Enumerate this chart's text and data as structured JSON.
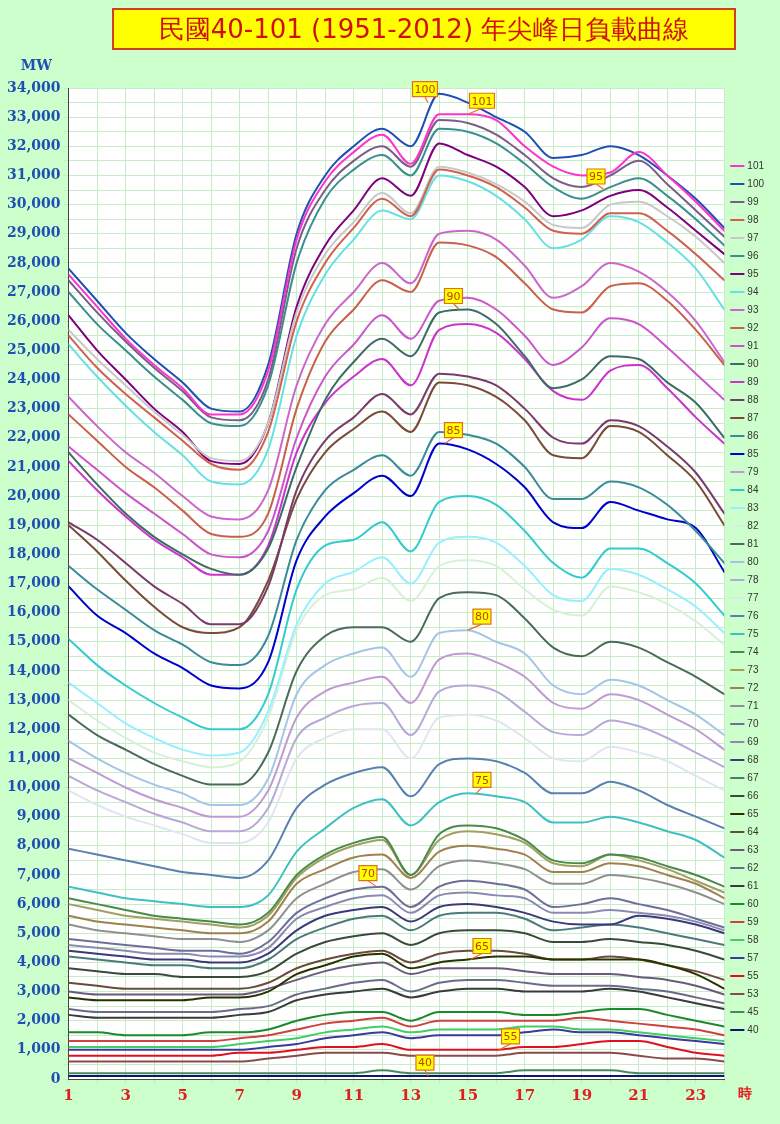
{
  "chart_data": {
    "type": "line",
    "title": "民國40-101 (1951-2012) 年尖峰日負載曲線",
    "ylabel": "MW",
    "xlabel": "時",
    "x": [
      1,
      2,
      3,
      4,
      5,
      6,
      7,
      8,
      9,
      10,
      11,
      12,
      13,
      14,
      15,
      16,
      17,
      18,
      19,
      20,
      21,
      22,
      23,
      24
    ],
    "xlim": [
      1,
      24
    ],
    "xticks": [
      1,
      {
        "value": 2,
        "label": null
      },
      3,
      {
        "value": 4,
        "label": null
      },
      5,
      {
        "value": 6,
        "label": null
      },
      7,
      {
        "value": 8,
        "label": null
      },
      9,
      {
        "value": 10,
        "label": null
      },
      11,
      {
        "value": 12,
        "label": null
      },
      13,
      {
        "value": 14,
        "label": null
      },
      15,
      {
        "value": 16,
        "label": null
      },
      17,
      {
        "value": 18,
        "label": null
      },
      19,
      {
        "value": 20,
        "label": null
      },
      21,
      {
        "value": 22,
        "label": null
      },
      23,
      {
        "value": 24,
        "label": null
      }
    ],
    "ylim": [
      0,
      34000
    ],
    "yticks": [
      0,
      {
        "value": 500,
        "label": null
      },
      {
        "value": 1000,
        "label": "1,000"
      },
      {
        "value": 1500,
        "label": null
      },
      {
        "value": 2000,
        "label": "2,000"
      },
      {
        "value": 2500,
        "label": null
      },
      {
        "value": 3000,
        "label": "3,000"
      },
      {
        "value": 3500,
        "label": null
      },
      {
        "value": 4000,
        "label": "4,000"
      },
      {
        "value": 4500,
        "label": null
      },
      {
        "value": 5000,
        "label": "5,000"
      },
      {
        "value": 5500,
        "label": null
      },
      {
        "value": 6000,
        "label": "6,000"
      },
      {
        "value": 6500,
        "label": null
      },
      {
        "value": 7000,
        "label": "7,000"
      },
      {
        "value": 7500,
        "label": null
      },
      {
        "value": 8000,
        "label": "8,000"
      },
      {
        "value": 8500,
        "label": null
      },
      {
        "value": 9000,
        "label": "9,000"
      },
      {
        "value": 9500,
        "label": null
      },
      {
        "value": 10000,
        "label": "10,000"
      },
      {
        "value": 10500,
        "label": null
      },
      {
        "value": 11000,
        "label": "11,000"
      },
      {
        "value": 11500,
        "label": null
      },
      {
        "value": 12000,
        "label": "12,000"
      },
      {
        "value": 12500,
        "label": null
      },
      {
        "value": 13000,
        "label": "13,000"
      },
      {
        "value": 13500,
        "label": null
      },
      {
        "value": 14000,
        "label": "14,000"
      },
      {
        "value": 14500,
        "label": null
      },
      {
        "value": 15000,
        "label": "15,000"
      },
      {
        "value": 15500,
        "label": null
      },
      {
        "value": 16000,
        "label": "16,000"
      },
      {
        "value": 16500,
        "label": null
      },
      {
        "value": 17000,
        "label": "17,000"
      },
      {
        "value": 17500,
        "label": null
      },
      {
        "value": 18000,
        "label": "18,000"
      },
      {
        "value": 18500,
        "label": null
      },
      {
        "value": 19000,
        "label": "19,000"
      },
      {
        "value": 19500,
        "label": null
      },
      {
        "value": 20000,
        "label": "20,000"
      },
      {
        "value": 20500,
        "label": null
      },
      {
        "value": 21000,
        "label": "21,000"
      },
      {
        "value": 21500,
        "label": null
      },
      {
        "value": 22000,
        "label": "22,000"
      },
      {
        "value": 22500,
        "label": null
      },
      {
        "value": 23000,
        "label": "23,000"
      },
      {
        "value": 23500,
        "label": null
      },
      {
        "value": 24000,
        "label": "24,000"
      },
      {
        "value": 24500,
        "label": null
      },
      {
        "value": 25000,
        "label": "25,000"
      },
      {
        "value": 25500,
        "label": null
      },
      {
        "value": 26000,
        "label": "26,000"
      },
      {
        "value": 26500,
        "label": null
      },
      {
        "value": 27000,
        "label": "27,000"
      },
      {
        "value": 27500,
        "label": null
      },
      {
        "value": 28000,
        "label": "28,000"
      },
      {
        "value": 28500,
        "label": null
      },
      {
        "value": 29000,
        "label": "29,000"
      },
      {
        "value": 29500,
        "label": null
      },
      {
        "value": 30000,
        "label": "30,000"
      },
      {
        "value": 30500,
        "label": null
      },
      {
        "value": 31000,
        "label": "31,000"
      },
      {
        "value": 31500,
        "label": null
      },
      {
        "value": 32000,
        "label": "32,000"
      },
      {
        "value": 32500,
        "label": null
      },
      {
        "value": 33000,
        "label": "33,000"
      },
      {
        "value": 33500,
        "label": null
      },
      {
        "value": 34000,
        "label": "34,000"
      }
    ],
    "grid": true,
    "legend": "right",
    "marker": "none",
    "line_style": "solid",
    "annotations": [
      {
        "text": "100",
        "x": 13.6,
        "y": 33500
      },
      {
        "text": "101",
        "x": 15,
        "y": 33100
      },
      {
        "text": "95",
        "x": 19.8,
        "y": 30500
      },
      {
        "text": "90",
        "x": 14.7,
        "y": 26400
      },
      {
        "text": "85",
        "x": 14.2,
        "y": 21800
      },
      {
        "text": "80",
        "x": 15,
        "y": 15400
      },
      {
        "text": "75",
        "x": 15.3,
        "y": 9800
      },
      {
        "text": "70",
        "x": 11.8,
        "y": 6600
      },
      {
        "text": "65",
        "x": 15.1,
        "y": 4100
      },
      {
        "text": "40",
        "x": 13.6,
        "y": 100
      },
      {
        "text": "55",
        "x": 16.1,
        "y": 1000
      }
    ],
    "series": [
      {
        "name": "101",
        "color": "#ff33cc",
        "values": [
          27600,
          26500,
          25400,
          24500,
          23700,
          22800,
          22800,
          24300,
          28800,
          30800,
          31800,
          32400,
          31400,
          33100,
          33100,
          32900,
          32000,
          31300,
          31000,
          31100,
          31800,
          31000,
          30100,
          29100
        ]
      },
      {
        "name": "100",
        "color": "#1f4fb4",
        "values": [
          27800,
          26700,
          25600,
          24700,
          23900,
          23000,
          22900,
          24500,
          29000,
          31000,
          32000,
          32600,
          32000,
          33800,
          33500,
          33000,
          32500,
          31600,
          31700,
          32000,
          31700,
          31000,
          30200,
          29200
        ]
      },
      {
        "name": "99",
        "color": "#7a5c8a",
        "values": [
          27400,
          26300,
          25300,
          24400,
          23600,
          22700,
          22600,
          24000,
          28500,
          30500,
          31500,
          32000,
          31300,
          32900,
          32800,
          32400,
          31700,
          30900,
          30600,
          31000,
          31500,
          30700,
          29800,
          28900
        ]
      },
      {
        "name": "98",
        "color": "#d06050",
        "values": [
          25500,
          24400,
          23500,
          22700,
          21900,
          21100,
          20900,
          22200,
          26000,
          28000,
          29200,
          30200,
          29600,
          31200,
          31000,
          30600,
          29900,
          29100,
          29000,
          29700,
          29700,
          29100,
          28300,
          27400
        ]
      },
      {
        "name": "97",
        "color": "#c8c8c8",
        "values": [
          25700,
          24700,
          23800,
          22900,
          22100,
          21300,
          21200,
          22500,
          26300,
          28300,
          29400,
          30400,
          29700,
          31300,
          31100,
          30700,
          30100,
          29300,
          29200,
          30000,
          30100,
          29600,
          28900,
          28000
        ]
      },
      {
        "name": "96",
        "color": "#3a8f8f",
        "values": [
          27000,
          25900,
          25000,
          24100,
          23300,
          22500,
          22400,
          23800,
          28000,
          30200,
          31200,
          31700,
          31000,
          32600,
          32500,
          32100,
          31400,
          30600,
          30200,
          30600,
          30900,
          30300,
          29500,
          28600
        ]
      },
      {
        "name": "95",
        "color": "#7f007f",
        "values": [
          26200,
          25000,
          24000,
          23000,
          22200,
          21200,
          21100,
          22500,
          26500,
          28600,
          29800,
          30900,
          30300,
          32100,
          31700,
          31300,
          30600,
          29600,
          29800,
          30300,
          30500,
          29900,
          29100,
          28300
        ]
      },
      {
        "name": "94",
        "color": "#66e0e0",
        "values": [
          25200,
          24100,
          23100,
          22200,
          21400,
          20500,
          20400,
          21600,
          25500,
          27600,
          28800,
          29800,
          29500,
          31000,
          30800,
          30300,
          29500,
          28500,
          28800,
          29600,
          29400,
          28700,
          27800,
          26400
        ]
      },
      {
        "name": "93",
        "color": "#cc66cc",
        "values": [
          23400,
          22400,
          21500,
          20800,
          20000,
          19300,
          19200,
          20200,
          23800,
          25900,
          27000,
          28000,
          27300,
          29000,
          29100,
          28800,
          27900,
          26800,
          27200,
          28000,
          27700,
          27000,
          26000,
          24600
        ]
      },
      {
        "name": "92",
        "color": "#c8604a",
        "values": [
          22800,
          21900,
          21000,
          20300,
          19500,
          18700,
          18600,
          19400,
          23000,
          25300,
          26400,
          27400,
          27000,
          28700,
          28600,
          28200,
          27300,
          26400,
          26300,
          27200,
          27300,
          26700,
          25700,
          24500
        ]
      },
      {
        "name": "91",
        "color": "#cc55cc",
        "values": [
          21700,
          20900,
          20100,
          19400,
          18700,
          18000,
          17900,
          18800,
          22000,
          24100,
          25200,
          26200,
          25400,
          26700,
          26800,
          26400,
          25500,
          24500,
          25100,
          26100,
          25900,
          25100,
          24200,
          23300
        ]
      },
      {
        "name": "90",
        "color": "#3d6b65",
        "values": [
          21500,
          20400,
          19400,
          18600,
          18000,
          17500,
          17300,
          18200,
          21000,
          23300,
          24600,
          25400,
          24800,
          26300,
          26400,
          25900,
          24800,
          23700,
          24000,
          24800,
          24700,
          23900,
          23200,
          22000
        ]
      },
      {
        "name": "89",
        "color": "#cc33cc",
        "values": [
          21200,
          20200,
          19300,
          18500,
          17900,
          17300,
          17300,
          18300,
          21500,
          23200,
          24100,
          24700,
          23800,
          25700,
          25900,
          25600,
          24700,
          23600,
          23300,
          24300,
          24500,
          23700,
          22700,
          21800
        ]
      },
      {
        "name": "88",
        "color": "#7a3a6a",
        "values": [
          19100,
          18500,
          17700,
          16900,
          16300,
          15600,
          15600,
          16900,
          20200,
          21900,
          22700,
          23500,
          22800,
          24200,
          24100,
          23800,
          23000,
          22000,
          21800,
          22600,
          22400,
          21700,
          20800,
          19400
        ]
      },
      {
        "name": "87",
        "color": "#7a4a3a",
        "values": [
          19000,
          18100,
          17100,
          16200,
          15500,
          15300,
          15500,
          17100,
          19900,
          21500,
          22300,
          22900,
          22200,
          23900,
          23800,
          23400,
          22600,
          21400,
          21300,
          22400,
          22200,
          21400,
          20500,
          19000
        ]
      },
      {
        "name": "86",
        "color": "#3a8a9a",
        "values": [
          17600,
          16800,
          16100,
          15400,
          14900,
          14300,
          14200,
          15200,
          18500,
          20200,
          20900,
          21400,
          20700,
          22200,
          22100,
          21800,
          21000,
          19900,
          19900,
          20500,
          20300,
          19700,
          18800,
          17700
        ]
      },
      {
        "name": "85",
        "color": "#0000cc",
        "values": [
          16900,
          15900,
          15300,
          14600,
          14100,
          13500,
          13400,
          14300,
          17800,
          19300,
          20100,
          20700,
          20000,
          21800,
          21600,
          21100,
          20300,
          19100,
          18900,
          19800,
          19500,
          19200,
          18900,
          17400
        ]
      },
      {
        "name": "79",
        "color": "#c09ad0",
        "values": [
          11000,
          10500,
          10000,
          9600,
          9300,
          9000,
          9000,
          9900,
          12400,
          13300,
          13600,
          13800,
          12900,
          14400,
          14600,
          14300,
          13800,
          12900,
          12700,
          13200,
          13000,
          12500,
          12000,
          11300
        ]
      },
      {
        "name": "84",
        "color": "#33cccc",
        "values": [
          15100,
          14200,
          13500,
          12900,
          12400,
          12000,
          12000,
          13200,
          16800,
          18300,
          18500,
          19100,
          18100,
          19800,
          20000,
          19700,
          18800,
          17700,
          17200,
          18200,
          18200,
          17700,
          17000,
          15900
        ]
      },
      {
        "name": "83",
        "color": "#99eeff",
        "values": [
          13600,
          12900,
          12200,
          11700,
          11300,
          11100,
          11200,
          12600,
          15600,
          17000,
          17400,
          17900,
          17000,
          18400,
          18600,
          18400,
          17600,
          16600,
          16400,
          17500,
          17300,
          16800,
          16200,
          15300
        ]
      },
      {
        "name": "82",
        "color": "#d8efd8",
        "values": [
          13000,
          12300,
          11700,
          11200,
          10900,
          10700,
          10900,
          12400,
          15400,
          16600,
          16800,
          17200,
          16400,
          17600,
          17800,
          17600,
          16800,
          16100,
          15900,
          16900,
          16700,
          16300,
          15700,
          14900
        ]
      },
      {
        "name": "81",
        "color": "#4a6a5a",
        "values": [
          12500,
          11800,
          11300,
          10800,
          10400,
          10100,
          10100,
          11200,
          14000,
          15200,
          15500,
          15500,
          15000,
          16500,
          16700,
          16600,
          15800,
          14800,
          14500,
          15000,
          14800,
          14300,
          13800,
          13200
        ]
      },
      {
        "name": "80",
        "color": "#a6c4e6",
        "values": [
          11600,
          11000,
          10500,
          10100,
          9800,
          9400,
          9400,
          10300,
          13200,
          14200,
          14600,
          14800,
          13800,
          15300,
          15400,
          15000,
          14600,
          13500,
          13200,
          13700,
          13500,
          13000,
          12500,
          11800
        ]
      },
      {
        "name": "78",
        "color": "#b8a8d8",
        "values": [
          10400,
          9900,
          9500,
          9100,
          8800,
          8500,
          8500,
          9300,
          11700,
          12400,
          12800,
          12900,
          11800,
          13300,
          13500,
          13300,
          12600,
          11900,
          11800,
          12300,
          12100,
          11700,
          11200,
          10700
        ]
      },
      {
        "name": "77",
        "color": "#e0e6f0",
        "values": [
          9900,
          9400,
          9000,
          8700,
          8400,
          8100,
          8100,
          8800,
          11000,
          11700,
          12000,
          12000,
          11000,
          12400,
          12500,
          12300,
          11700,
          11000,
          10900,
          11400,
          11200,
          10900,
          10400,
          9900
        ]
      },
      {
        "name": "76",
        "color": "#5a80b0",
        "values": [
          7900,
          7700,
          7500,
          7300,
          7100,
          7000,
          6900,
          7500,
          9300,
          10100,
          10500,
          10700,
          9700,
          10800,
          11000,
          10900,
          10500,
          9800,
          9800,
          10200,
          9900,
          9400,
          9000,
          8600
        ]
      },
      {
        "name": "75",
        "color": "#40c0c0",
        "values": [
          6600,
          6400,
          6200,
          6100,
          6000,
          5900,
          5900,
          6300,
          7800,
          8600,
          9300,
          9600,
          8700,
          9500,
          9800,
          9700,
          9500,
          8800,
          8800,
          9000,
          8800,
          8500,
          8200,
          7600
        ]
      },
      {
        "name": "74",
        "color": "#4a8a4a",
        "values": [
          6200,
          6000,
          5800,
          5600,
          5500,
          5400,
          5300,
          5700,
          7000,
          7700,
          8100,
          8300,
          7000,
          8400,
          8700,
          8600,
          8200,
          7500,
          7400,
          7700,
          7600,
          7300,
          7000,
          6600
        ]
      },
      {
        "name": "73",
        "color": "#a0a060",
        "values": [
          6000,
          5800,
          5600,
          5500,
          5400,
          5300,
          5200,
          5600,
          6900,
          7600,
          8000,
          8200,
          7000,
          8200,
          8500,
          8400,
          8100,
          7400,
          7300,
          7700,
          7500,
          7200,
          6800,
          6400
        ]
      },
      {
        "name": "72",
        "color": "#a08050",
        "values": [
          5600,
          5400,
          5300,
          5200,
          5100,
          5000,
          5000,
          5400,
          6700,
          7200,
          7600,
          7700,
          6900,
          7800,
          8000,
          7900,
          7700,
          7100,
          7100,
          7400,
          7300,
          7000,
          6700,
          6200
        ]
      },
      {
        "name": "71",
        "color": "#909090",
        "values": [
          5300,
          5100,
          5000,
          4900,
          4800,
          4800,
          4700,
          5100,
          6200,
          6700,
          7100,
          7200,
          6500,
          7300,
          7500,
          7400,
          7200,
          6700,
          6700,
          7000,
          6900,
          6700,
          6400,
          6000
        ]
      },
      {
        "name": "70",
        "color": "#6e6e9a",
        "values": [
          4800,
          4700,
          4600,
          4500,
          4400,
          4400,
          4300,
          4700,
          5700,
          6200,
          6500,
          6600,
          5900,
          6600,
          6800,
          6700,
          6500,
          5900,
          6000,
          6200,
          6000,
          5800,
          5500,
          5200
        ]
      },
      {
        "name": "69",
        "color": "#8a8ab0",
        "values": [
          4600,
          4500,
          4400,
          4300,
          4300,
          4200,
          4200,
          4500,
          5500,
          5900,
          6200,
          6300,
          5700,
          6300,
          6400,
          6300,
          6200,
          5700,
          5700,
          5800,
          5700,
          5600,
          5400,
          5100
        ]
      },
      {
        "name": "68",
        "color": "#3a3a7a",
        "values": [
          4400,
          4300,
          4200,
          4100,
          4100,
          4000,
          4000,
          4300,
          5100,
          5600,
          5800,
          5900,
          5400,
          5900,
          6000,
          5900,
          5700,
          5400,
          5300,
          5300,
          5600,
          5500,
          5300,
          5000
        ]
      },
      {
        "name": "67",
        "color": "#4a7a7a",
        "values": [
          4200,
          4100,
          4000,
          3900,
          3900,
          3800,
          3800,
          4100,
          4800,
          5200,
          5500,
          5600,
          5100,
          5600,
          5700,
          5700,
          5500,
          5100,
          5200,
          5300,
          5200,
          5000,
          4800,
          4600
        ]
      },
      {
        "name": "66",
        "color": "#3a4a3a",
        "values": [
          3800,
          3700,
          3600,
          3600,
          3500,
          3500,
          3500,
          3700,
          4300,
          4700,
          4900,
          5000,
          4600,
          5000,
          5100,
          5100,
          5000,
          4700,
          4700,
          4800,
          4700,
          4600,
          4400,
          4100
        ]
      },
      {
        "name": "65",
        "color": "#2a3300",
        "values": [
          2800,
          2700,
          2700,
          2700,
          2700,
          2800,
          2800,
          3000,
          3600,
          3900,
          4200,
          4300,
          3800,
          4000,
          4100,
          4200,
          4200,
          4100,
          4100,
          4100,
          4100,
          3900,
          3600,
          3100
        ]
      },
      {
        "name": "64",
        "color": "#6a4a3a",
        "values": [
          3300,
          3200,
          3100,
          3100,
          3100,
          3100,
          3100,
          3300,
          3800,
          4100,
          4300,
          4400,
          4000,
          4300,
          4400,
          4400,
          4300,
          4100,
          4100,
          4200,
          4100,
          3900,
          3700,
          3400
        ]
      },
      {
        "name": "63",
        "color": "#6a5a7a",
        "values": [
          3000,
          2900,
          2900,
          2900,
          2900,
          2900,
          2900,
          3100,
          3400,
          3700,
          3900,
          4000,
          3600,
          3800,
          3800,
          3800,
          3700,
          3600,
          3600,
          3600,
          3500,
          3400,
          3200,
          2900
        ]
      },
      {
        "name": "62",
        "color": "#6a6a8a",
        "values": [
          2400,
          2300,
          2300,
          2300,
          2300,
          2300,
          2400,
          2500,
          2900,
          3100,
          3300,
          3400,
          3000,
          3300,
          3400,
          3400,
          3300,
          3200,
          3200,
          3200,
          3100,
          3000,
          2800,
          2600
        ]
      },
      {
        "name": "61",
        "color": "#3a3a3a",
        "values": [
          2200,
          2100,
          2100,
          2100,
          2100,
          2100,
          2200,
          2300,
          2700,
          2900,
          3000,
          3100,
          2800,
          3000,
          3100,
          3100,
          3000,
          3000,
          3000,
          3100,
          3000,
          2800,
          2600,
          2400
        ]
      },
      {
        "name": "60",
        "color": "#1a8a2a",
        "values": [
          1600,
          1600,
          1500,
          1500,
          1500,
          1600,
          1600,
          1700,
          2000,
          2200,
          2300,
          2300,
          2000,
          2300,
          2300,
          2300,
          2200,
          2200,
          2300,
          2400,
          2400,
          2200,
          2000,
          1800
        ]
      },
      {
        "name": "59",
        "color": "#d04040",
        "values": [
          1300,
          1300,
          1300,
          1300,
          1300,
          1300,
          1400,
          1500,
          1700,
          1900,
          2000,
          2100,
          1800,
          2000,
          2000,
          2000,
          2000,
          2000,
          2100,
          2000,
          1900,
          1800,
          1700,
          1500
        ]
      },
      {
        "name": "58",
        "color": "#44cc66",
        "values": [
          1100,
          1100,
          1100,
          1100,
          1100,
          1100,
          1200,
          1300,
          1400,
          1600,
          1700,
          1800,
          1600,
          1700,
          1700,
          1700,
          1800,
          1800,
          1700,
          1700,
          1600,
          1500,
          1400,
          1300
        ]
      },
      {
        "name": "57",
        "color": "#3a3a9a",
        "values": [
          1000,
          1000,
          1000,
          1000,
          1000,
          1000,
          1000,
          1100,
          1200,
          1400,
          1500,
          1600,
          1400,
          1500,
          1500,
          1500,
          1600,
          1700,
          1600,
          1600,
          1500,
          1400,
          1300,
          1200
        ]
      },
      {
        "name": "55",
        "color": "#e01020",
        "values": [
          800,
          800,
          800,
          800,
          800,
          800,
          900,
          900,
          1000,
          1100,
          1100,
          1200,
          1000,
          1000,
          1000,
          1000,
          1100,
          1100,
          1200,
          1300,
          1300,
          1100,
          900,
          800
        ]
      },
      {
        "name": "53",
        "color": "#8a4a4a",
        "values": [
          600,
          600,
          600,
          600,
          600,
          600,
          600,
          700,
          800,
          900,
          900,
          900,
          800,
          800,
          800,
          800,
          900,
          900,
          900,
          900,
          800,
          700,
          700,
          600
        ]
      },
      {
        "name": "45",
        "color": "#4a8a5a",
        "values": [
          200,
          200,
          200,
          200,
          200,
          200,
          200,
          200,
          200,
          200,
          200,
          300,
          200,
          200,
          200,
          200,
          300,
          300,
          300,
          300,
          200,
          200,
          200,
          200
        ]
      },
      {
        "name": "40",
        "color": "#0a1a6a",
        "values": [
          100,
          100,
          100,
          100,
          100,
          100,
          100,
          100,
          100,
          100,
          100,
          100,
          100,
          100,
          100,
          100,
          100,
          100,
          100,
          100,
          100,
          100,
          100,
          100
        ]
      }
    ]
  }
}
